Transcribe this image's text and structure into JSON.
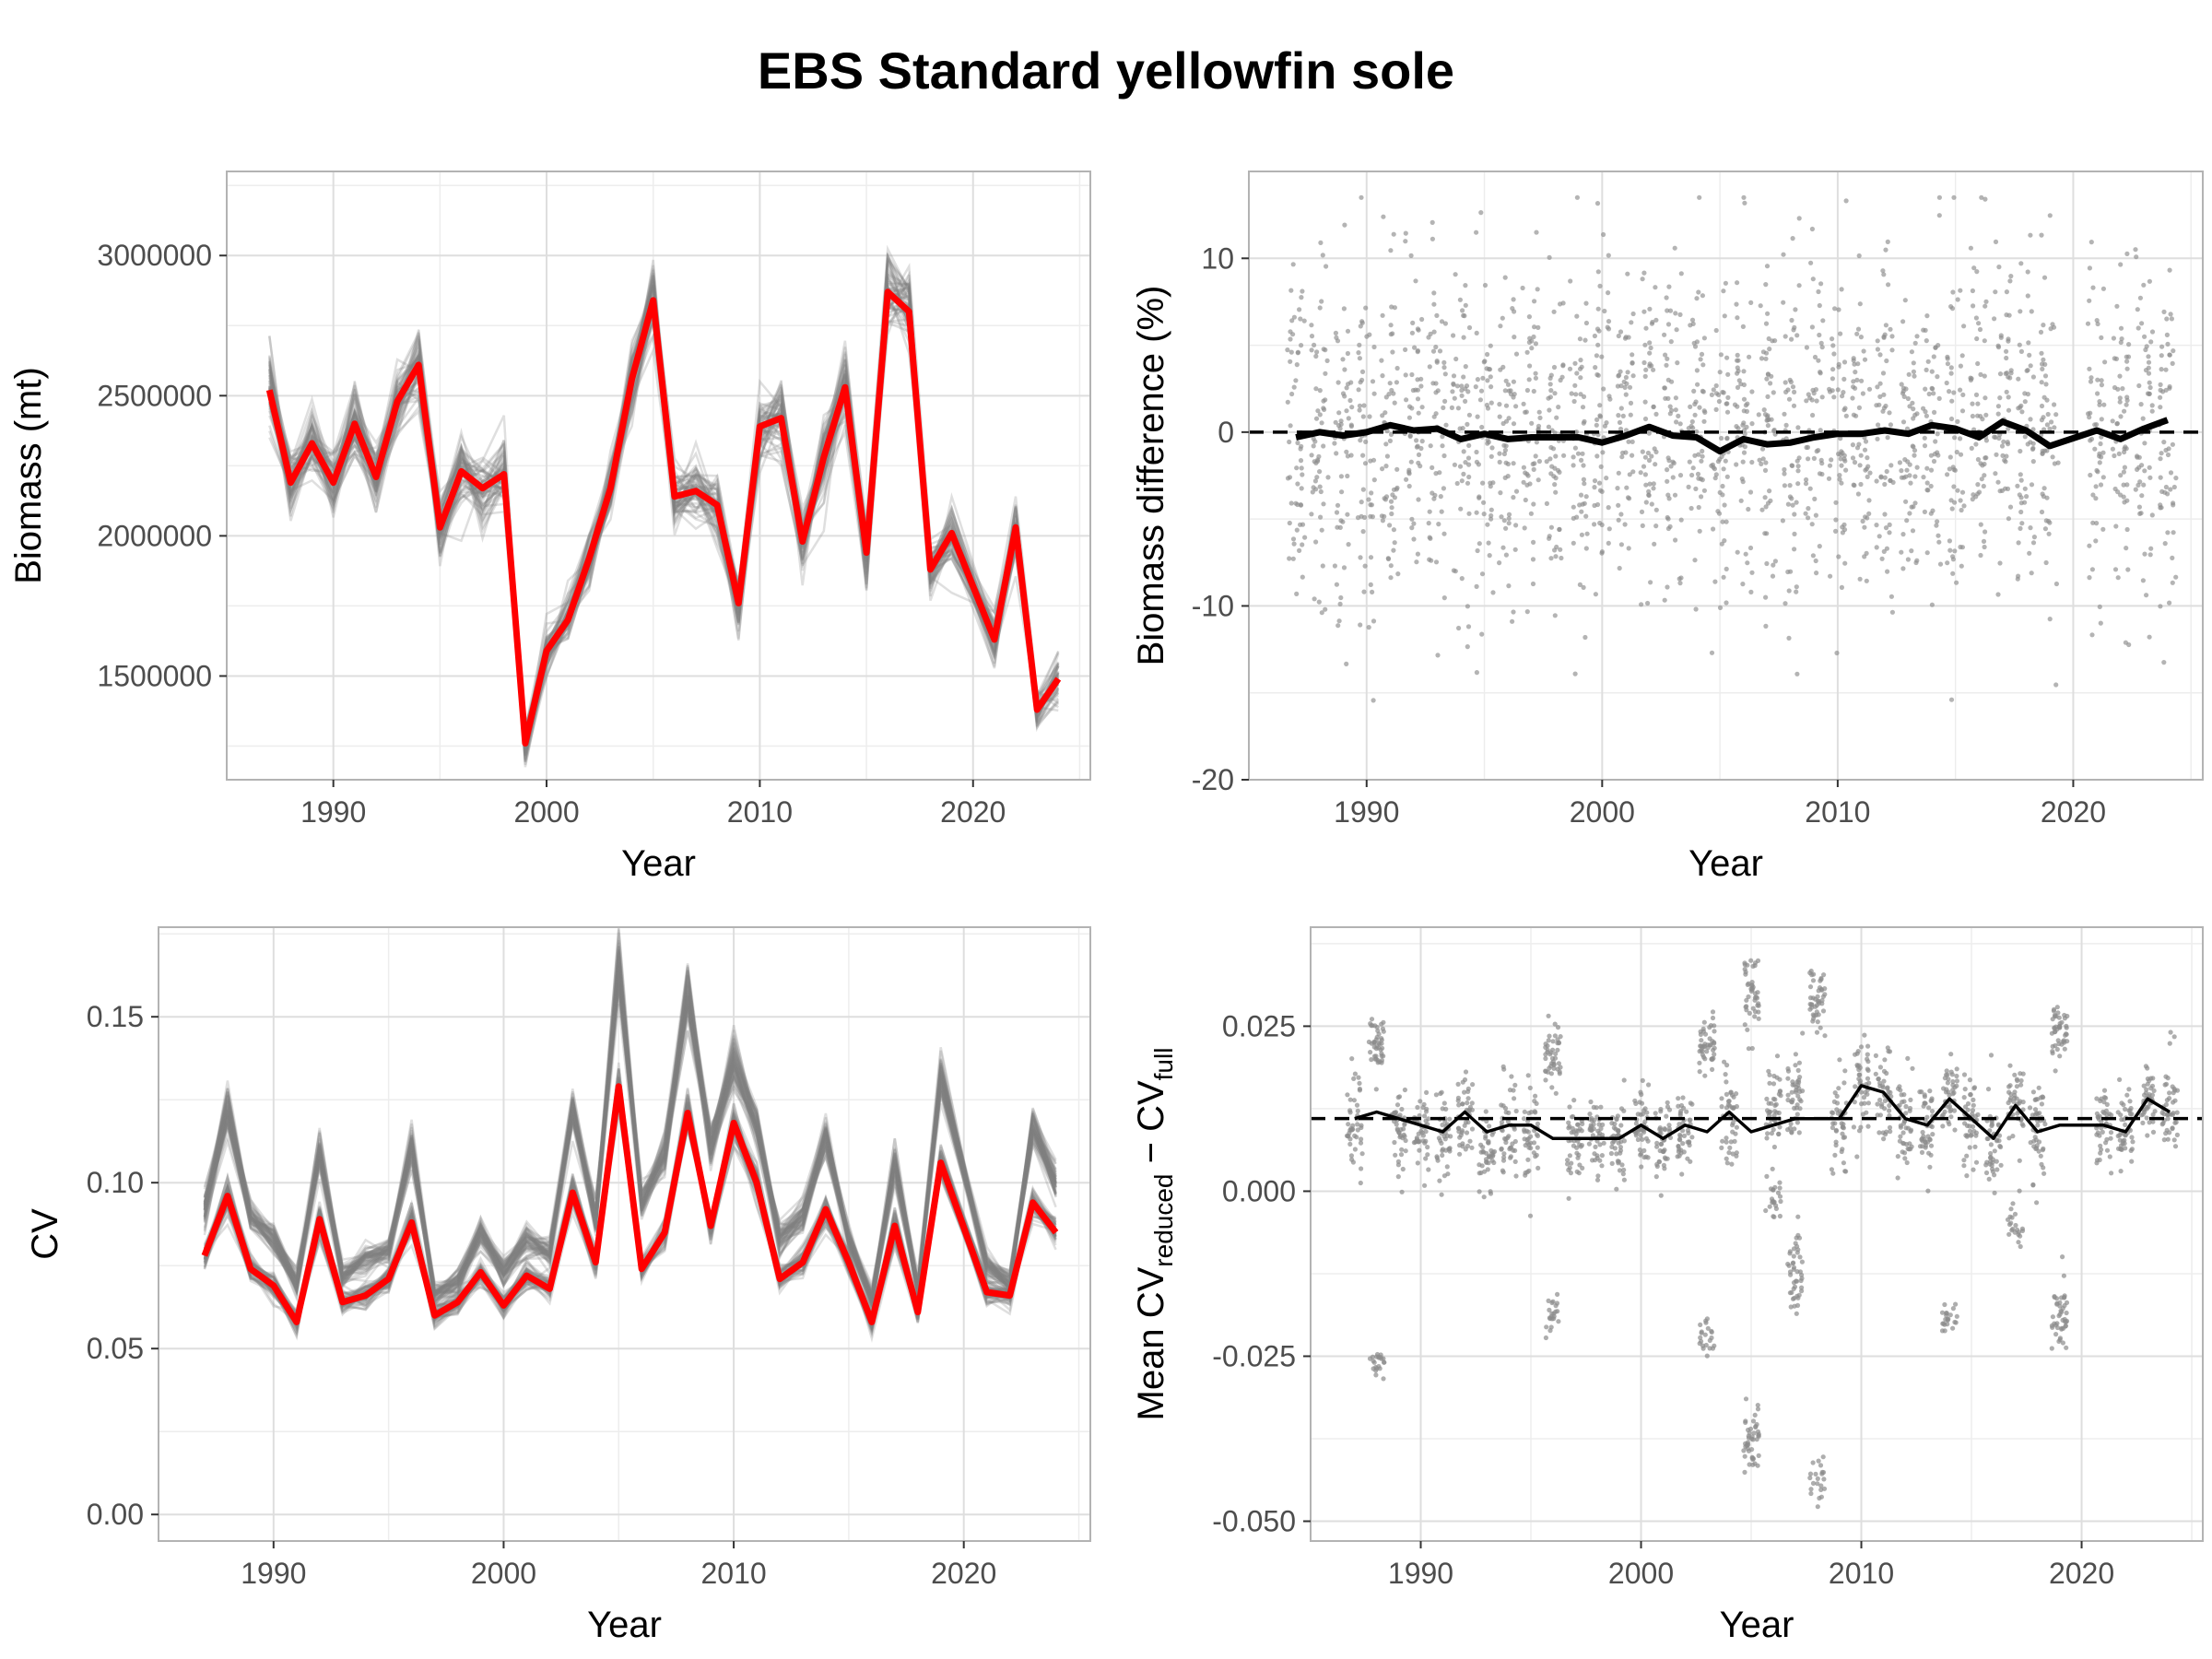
{
  "title": "EBS Standard yellowfin sole",
  "chart_data": [
    {
      "id": "biomass",
      "type": "line",
      "xlabel": "Year",
      "ylabel": "Biomass (mt)",
      "xlim": [
        1985,
        2025.5
      ],
      "ylim": [
        1130000,
        3300000
      ],
      "xticks": [
        1990,
        2000,
        2010,
        2020
      ],
      "yticks": [
        1500000,
        2000000,
        2500000,
        3000000
      ],
      "grid": true,
      "legend": "none",
      "colors": {
        "main": "#ff0000",
        "replicates": "#7f7f7f"
      },
      "x": [
        1987,
        1988,
        1989,
        1990,
        1991,
        1992,
        1993,
        1994,
        1995,
        1996,
        1997,
        1998,
        1999,
        2000,
        2001,
        2002,
        2003,
        2004,
        2005,
        2006,
        2007,
        2008,
        2009,
        2010,
        2011,
        2012,
        2013,
        2014,
        2015,
        2016,
        2017,
        2018,
        2019,
        2021,
        2022,
        2023,
        2024
      ],
      "series": [
        {
          "values": [
            2520000,
            2190000,
            2330000,
            2190000,
            2400000,
            2210000,
            2480000,
            2610000,
            2030000,
            2230000,
            2170000,
            2220000,
            1260000,
            1590000,
            1700000,
            1920000,
            2170000,
            2560000,
            2840000,
            2140000,
            2160000,
            2110000,
            1760000,
            2390000,
            2420000,
            1980000,
            2280000,
            2530000,
            1940000,
            2870000,
            2800000,
            1880000,
            2010000,
            1630000,
            2030000,
            1380000,
            1490000
          ]
        }
      ]
    },
    {
      "id": "biomass-diff",
      "type": "scatter",
      "xlabel": "Year",
      "ylabel": "Biomass difference (%)",
      "xlim": [
        1985,
        2025.5
      ],
      "ylim": [
        -20,
        15
      ],
      "xticks": [
        1990,
        2000,
        2010,
        2020
      ],
      "yticks": [
        -20,
        -10,
        0,
        10
      ],
      "grid": true,
      "legend": "none",
      "reference_line": 0,
      "colors": {
        "mean": "#000000",
        "points": "#8c8c8c"
      },
      "x": [
        1987,
        1988,
        1989,
        1990,
        1991,
        1992,
        1993,
        1994,
        1995,
        1996,
        1997,
        1998,
        1999,
        2000,
        2001,
        2002,
        2003,
        2004,
        2005,
        2006,
        2007,
        2008,
        2009,
        2010,
        2011,
        2012,
        2013,
        2014,
        2015,
        2016,
        2017,
        2018,
        2019,
        2021,
        2022,
        2023,
        2024
      ],
      "series": [
        {
          "values": [
            -0.3,
            0.0,
            -0.2,
            0.0,
            0.4,
            0.1,
            0.2,
            -0.4,
            -0.1,
            -0.4,
            -0.3,
            -0.3,
            -0.3,
            -0.6,
            -0.2,
            0.3,
            -0.2,
            -0.3,
            -1.1,
            -0.4,
            -0.7,
            -0.6,
            -0.3,
            -0.1,
            -0.1,
            0.1,
            -0.1,
            0.4,
            0.2,
            -0.3,
            0.6,
            0.1,
            -0.8,
            0.1,
            -0.4,
            0.2,
            0.7
          ]
        }
      ]
    },
    {
      "id": "cv",
      "type": "line",
      "xlabel": "Year",
      "ylabel": "CV",
      "xlim": [
        1985,
        2025.5
      ],
      "ylim": [
        -0.008,
        0.177
      ],
      "xticks": [
        1990,
        2000,
        2010,
        2020
      ],
      "yticks": [
        0.0,
        0.05,
        0.1,
        0.15
      ],
      "ytick_labels": [
        "0.00",
        "0.05",
        "0.10",
        "0.15"
      ],
      "grid": true,
      "legend": "none",
      "colors": {
        "main": "#ff0000",
        "replicates": "#7f7f7f"
      },
      "x": [
        1987,
        1988,
        1989,
        1990,
        1991,
        1992,
        1993,
        1994,
        1995,
        1996,
        1997,
        1998,
        1999,
        2000,
        2001,
        2002,
        2003,
        2004,
        2005,
        2006,
        2007,
        2008,
        2009,
        2010,
        2011,
        2012,
        2013,
        2014,
        2015,
        2016,
        2017,
        2018,
        2019,
        2021,
        2022,
        2023,
        2024
      ],
      "series": [
        {
          "values": [
            0.078,
            0.096,
            0.074,
            0.069,
            0.058,
            0.089,
            0.064,
            0.066,
            0.071,
            0.088,
            0.06,
            0.064,
            0.073,
            0.063,
            0.072,
            0.068,
            0.097,
            0.076,
            0.129,
            0.074,
            0.085,
            0.121,
            0.087,
            0.118,
            0.1,
            0.071,
            0.076,
            0.092,
            0.076,
            0.058,
            0.087,
            0.061,
            0.106,
            0.067,
            0.066,
            0.094,
            0.085
          ]
        },
        {
          "values": [
            0.092,
            0.122,
            0.09,
            0.083,
            0.07,
            0.109,
            0.072,
            0.077,
            0.079,
            0.112,
            0.066,
            0.07,
            0.085,
            0.073,
            0.082,
            0.079,
            0.123,
            0.089,
            0.166,
            0.094,
            0.11,
            0.158,
            0.111,
            0.137,
            0.117,
            0.083,
            0.09,
            0.114,
            0.083,
            0.065,
            0.106,
            0.068,
            0.132,
            0.075,
            0.07,
            0.117,
            0.1
          ]
        }
      ]
    },
    {
      "id": "cv-diff",
      "type": "scatter",
      "xlabel": "Year",
      "ylabel": "Mean CV",
      "ylabel_sub1": "reduced",
      "ylabel_mid": " − CV",
      "ylabel_sub2": "full",
      "xlim": [
        1985,
        2025.5
      ],
      "ylim": [
        -0.053,
        0.04
      ],
      "xticks": [
        1990,
        2000,
        2010,
        2020
      ],
      "yticks": [
        -0.05,
        -0.025,
        0.0,
        0.025
      ],
      "ytick_labels": [
        "-0.050",
        "-0.025",
        "0.000",
        "0.025"
      ],
      "grid": true,
      "legend": "none",
      "reference_line": 0.011,
      "colors": {
        "mean": "#000000",
        "points": "#8c8c8c"
      },
      "x": [
        1987,
        1988,
        1989,
        1990,
        1991,
        1992,
        1993,
        1994,
        1995,
        1996,
        1997,
        1998,
        1999,
        2000,
        2001,
        2002,
        2003,
        2004,
        2005,
        2006,
        2007,
        2008,
        2009,
        2010,
        2011,
        2012,
        2013,
        2014,
        2015,
        2016,
        2017,
        2018,
        2019,
        2021,
        2022,
        2023,
        2024
      ],
      "series": [
        {
          "values": [
            0.011,
            0.012,
            0.011,
            0.01,
            0.009,
            0.012,
            0.009,
            0.01,
            0.01,
            0.008,
            0.008,
            0.008,
            0.008,
            0.01,
            0.008,
            0.01,
            0.009,
            0.012,
            0.009,
            0.01,
            0.011,
            0.011,
            0.011,
            0.016,
            0.015,
            0.011,
            0.01,
            0.014,
            0.011,
            0.008,
            0.013,
            0.009,
            0.01,
            0.01,
            0.009,
            0.014,
            0.012
          ]
        }
      ],
      "point_clusters": [
        {
          "x": 1987,
          "center": 0.01,
          "spread": 0.006
        },
        {
          "x": 1988,
          "center": 0.022,
          "spread": 0.004
        },
        {
          "x": 1988,
          "center": -0.026,
          "spread": 0.002
        },
        {
          "x": 1989,
          "center": 0.01,
          "spread": 0.006
        },
        {
          "x": 1990,
          "center": 0.009,
          "spread": 0.005
        },
        {
          "x": 1991,
          "center": 0.008,
          "spread": 0.005
        },
        {
          "x": 1992,
          "center": 0.012,
          "spread": 0.006
        },
        {
          "x": 1993,
          "center": 0.006,
          "spread": 0.006
        },
        {
          "x": 1994,
          "center": 0.009,
          "spread": 0.006
        },
        {
          "x": 1995,
          "center": 0.009,
          "spread": 0.006
        },
        {
          "x": 1996,
          "center": 0.02,
          "spread": 0.004
        },
        {
          "x": 1996,
          "center": -0.019,
          "spread": 0.002
        },
        {
          "x": 1997,
          "center": 0.008,
          "spread": 0.005
        },
        {
          "x": 1998,
          "center": 0.008,
          "spread": 0.005
        },
        {
          "x": 1999,
          "center": 0.008,
          "spread": 0.005
        },
        {
          "x": 2000,
          "center": 0.009,
          "spread": 0.005
        },
        {
          "x": 2001,
          "center": 0.008,
          "spread": 0.005
        },
        {
          "x": 2002,
          "center": 0.009,
          "spread": 0.005
        },
        {
          "x": 2003,
          "center": 0.022,
          "spread": 0.004
        },
        {
          "x": 2003,
          "center": -0.022,
          "spread": 0.003
        },
        {
          "x": 2004,
          "center": 0.011,
          "spread": 0.006
        },
        {
          "x": 2005,
          "center": 0.03,
          "spread": 0.005
        },
        {
          "x": 2005,
          "center": -0.038,
          "spread": 0.004
        },
        {
          "x": 2006,
          "center": 0.012,
          "spread": 0.006
        },
        {
          "x": 2006,
          "center": -0.001,
          "spread": 0.003
        },
        {
          "x": 2007,
          "center": 0.014,
          "spread": 0.006
        },
        {
          "x": 2007,
          "center": -0.013,
          "spread": 0.006
        },
        {
          "x": 2008,
          "center": 0.029,
          "spread": 0.005
        },
        {
          "x": 2008,
          "center": -0.044,
          "spread": 0.003
        },
        {
          "x": 2009,
          "center": 0.01,
          "spread": 0.006
        },
        {
          "x": 2010,
          "center": 0.017,
          "spread": 0.006
        },
        {
          "x": 2011,
          "center": 0.015,
          "spread": 0.006
        },
        {
          "x": 2012,
          "center": 0.01,
          "spread": 0.006
        },
        {
          "x": 2013,
          "center": 0.01,
          "spread": 0.005
        },
        {
          "x": 2014,
          "center": 0.015,
          "spread": 0.005
        },
        {
          "x": 2014,
          "center": -0.019,
          "spread": 0.002
        },
        {
          "x": 2015,
          "center": 0.01,
          "spread": 0.006
        },
        {
          "x": 2016,
          "center": 0.007,
          "spread": 0.006
        },
        {
          "x": 2017,
          "center": 0.014,
          "spread": 0.006
        },
        {
          "x": 2017,
          "center": -0.005,
          "spread": 0.003
        },
        {
          "x": 2018,
          "center": 0.009,
          "spread": 0.006
        },
        {
          "x": 2019,
          "center": 0.024,
          "spread": 0.004
        },
        {
          "x": 2019,
          "center": -0.019,
          "spread": 0.004
        },
        {
          "x": 2021,
          "center": 0.01,
          "spread": 0.005
        },
        {
          "x": 2022,
          "center": 0.009,
          "spread": 0.005
        },
        {
          "x": 2023,
          "center": 0.014,
          "spread": 0.005
        },
        {
          "x": 2024,
          "center": 0.012,
          "spread": 0.006
        }
      ]
    }
  ]
}
